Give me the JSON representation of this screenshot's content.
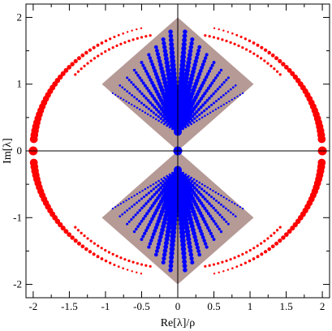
{
  "chart_data": {
    "type": "scatter",
    "title": "",
    "xlabel": "Re[λ]/ρ",
    "ylabel": "Im[λ]",
    "xlim": [
      -2.1,
      2.1
    ],
    "ylim": [
      -2.2,
      2.2
    ],
    "x_ticks": [
      -2,
      -1.5,
      -1,
      -0.5,
      0,
      0.5,
      1,
      1.5,
      2
    ],
    "x_tick_labels": [
      "-2",
      "-1.5",
      "-1",
      "-0.5",
      "0",
      "0.5",
      "1",
      "1.5",
      "2"
    ],
    "y_ticks": [
      -2,
      -1,
      0,
      1,
      2
    ],
    "y_tick_labels": [
      "-2",
      "-1",
      "0",
      "1",
      "2"
    ],
    "grid": false,
    "zero_lines": true,
    "colors": {
      "shaded_region": "#b59a96",
      "red_series": "#ff0000",
      "blue_series": "#0000ff"
    },
    "shaded_region": {
      "description_points": [
        [
          0,
          2.0
        ],
        [
          1.05,
          1.0
        ],
        [
          0,
          0
        ],
        [
          -1.05,
          1.0
        ]
      ],
      "mirrored_about_real_axis": true
    },
    "series": [
      {
        "color": "#ff0000",
        "shape": "ellipse",
        "semi_axes": [
          2.0,
          1.9
        ],
        "gap_inner_radius": 0.75,
        "points_per_quadrant": 38,
        "axis_points": [
          [
            -2,
            0
          ],
          [
            2,
            0
          ]
        ]
      },
      {
        "color": "#0000ff",
        "shape": "cusp-spokes",
        "spokes_per_side": 9,
        "reach": 1.9,
        "axis_points": [
          [
            0,
            0
          ]
        ]
      }
    ]
  }
}
